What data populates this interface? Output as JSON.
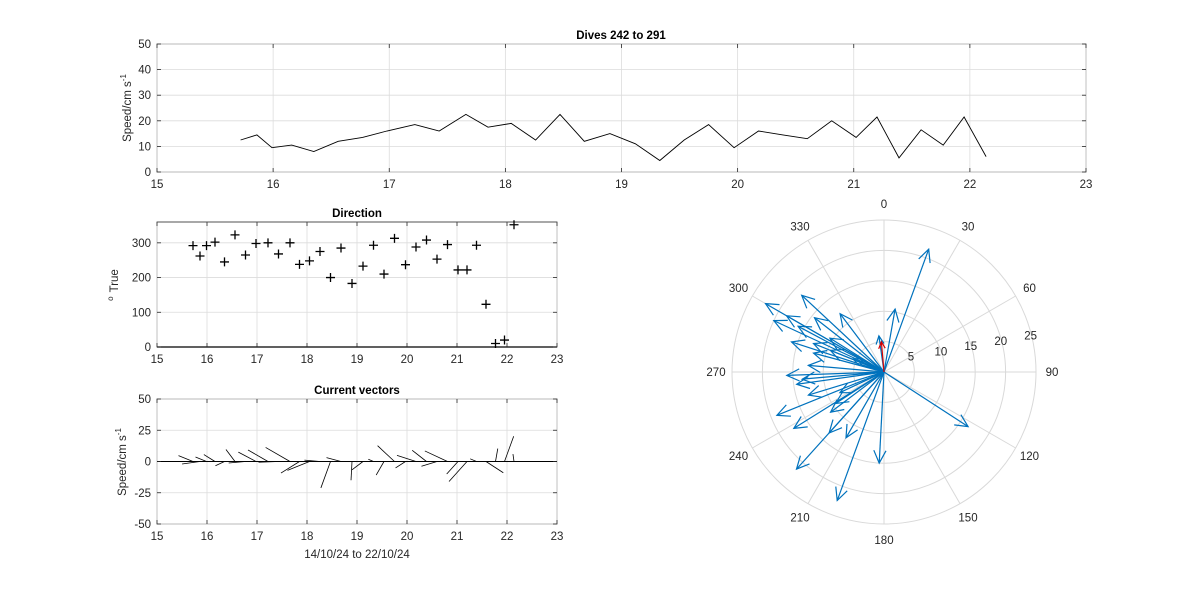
{
  "colors": {
    "line": "#000000",
    "arrow": "#0072bd",
    "mean_arrow": "#d40000",
    "grid": "#dcdcdc"
  },
  "chart_data": [
    {
      "type": "line",
      "title": "Dives 242 to 291",
      "xlabel": "",
      "ylabel": "Speed/cm s",
      "ylabel_sup": "-1",
      "xlim": [
        15,
        23
      ],
      "ylim": [
        0,
        50
      ],
      "xticks": [
        15,
        16,
        17,
        18,
        19,
        20,
        21,
        22,
        23
      ],
      "yticks": [
        0,
        10,
        20,
        30,
        40,
        50
      ],
      "grid": true,
      "x": [
        15.72,
        15.86,
        15.99,
        16.16,
        16.35,
        16.56,
        16.77,
        16.98,
        17.22,
        17.43,
        17.66,
        17.85,
        18.05,
        18.26,
        18.47,
        18.68,
        18.9,
        19.12,
        19.33,
        19.54,
        19.75,
        19.97,
        20.18,
        20.39,
        20.6,
        20.81,
        21.02,
        21.2,
        21.39,
        21.58,
        21.77,
        21.95,
        22.14
      ],
      "y": [
        12.5,
        14.5,
        9.5,
        10.5,
        8,
        12,
        13.5,
        16,
        18.5,
        16,
        22.5,
        17.5,
        19,
        12.5,
        22.5,
        12,
        15,
        11,
        4.5,
        12.5,
        18.5,
        9.5,
        16,
        14.5,
        13,
        20,
        13.5,
        21.5,
        5.5,
        16.5,
        10.5,
        21.5,
        6
      ]
    },
    {
      "type": "scatter",
      "title": "Direction",
      "xlabel": "",
      "ylabel": "True",
      "ylabel_sup": "o",
      "xlim": [
        15,
        23
      ],
      "ylim": [
        0,
        360
      ],
      "xticks": [
        15,
        16,
        17,
        18,
        19,
        20,
        21,
        22,
        23
      ],
      "yticks": [
        0,
        100,
        200,
        300
      ],
      "grid": true,
      "marker": "+",
      "x": [
        15.72,
        15.86,
        15.99,
        16.16,
        16.35,
        16.56,
        16.77,
        16.98,
        17.22,
        17.43,
        17.66,
        17.85,
        18.05,
        18.26,
        18.47,
        18.68,
        18.9,
        19.12,
        19.33,
        19.54,
        19.75,
        19.97,
        20.18,
        20.39,
        20.6,
        20.81,
        21.02,
        21.2,
        21.39,
        21.58,
        21.77,
        21.95,
        22.14
      ],
      "y": [
        292,
        262,
        292,
        302,
        245,
        323,
        265,
        298,
        300,
        268,
        300,
        238,
        248,
        275,
        200,
        285,
        183,
        233,
        293,
        210,
        313,
        237,
        288,
        308,
        253,
        295,
        222,
        222,
        293,
        123,
        10,
        20,
        352
      ]
    },
    {
      "type": "line",
      "subtype": "stick",
      "title": "Current vectors",
      "xlabel": "14/10/24 to 22/10/24",
      "ylabel": "Speed/cm s",
      "ylabel_sup": "-1",
      "xlim": [
        15,
        23
      ],
      "ylim": [
        -50,
        50
      ],
      "xticks": [
        15,
        16,
        17,
        18,
        19,
        20,
        21,
        22,
        23
      ],
      "yticks": [
        -50,
        -25,
        0,
        25,
        50
      ],
      "grid": true,
      "x": [
        15.72,
        15.86,
        15.99,
        16.16,
        16.35,
        16.56,
        16.77,
        16.98,
        17.22,
        17.43,
        17.66,
        17.85,
        18.05,
        18.26,
        18.47,
        18.68,
        18.9,
        19.12,
        19.33,
        19.54,
        19.75,
        19.97,
        20.18,
        20.39,
        20.6,
        20.81,
        21.02,
        21.2,
        21.39,
        21.58,
        21.77,
        21.95,
        22.14
      ],
      "speed": [
        12.5,
        14.5,
        9.5,
        10.5,
        8,
        12,
        13.5,
        16,
        18.5,
        16,
        22.5,
        17.5,
        19,
        12.5,
        22.5,
        12,
        15,
        11,
        4.5,
        12.5,
        18.5,
        9.5,
        16,
        14.5,
        13,
        20,
        13.5,
        21.5,
        5.5,
        16.5,
        10.5,
        21.5,
        6
      ],
      "direction_deg": [
        292,
        262,
        292,
        302,
        245,
        323,
        265,
        298,
        300,
        268,
        300,
        238,
        248,
        275,
        200,
        285,
        183,
        233,
        293,
        210,
        313,
        237,
        288,
        308,
        253,
        295,
        222,
        222,
        293,
        123,
        10,
        20,
        352
      ]
    },
    {
      "type": "scatter",
      "subtype": "polar-compass",
      "title": "",
      "angle_labels": [
        "0",
        "30",
        "60",
        "90",
        "120",
        "150",
        "180",
        "210",
        "240",
        "270",
        "300",
        "330"
      ],
      "radial_ticks": [
        5,
        10,
        15,
        20,
        25
      ],
      "rlim": [
        0,
        25
      ],
      "speed": [
        12.5,
        14.5,
        9.5,
        10.5,
        8,
        12,
        13.5,
        16,
        18.5,
        16,
        22.5,
        17.5,
        19,
        12.5,
        22.5,
        12,
        15,
        11,
        4.5,
        12.5,
        18.5,
        9.5,
        16,
        14.5,
        13,
        20,
        13.5,
        21.5,
        5.5,
        16.5,
        10.5,
        21.5,
        6
      ],
      "direction_deg": [
        292,
        262,
        292,
        302,
        245,
        323,
        265,
        298,
        300,
        268,
        300,
        238,
        248,
        275,
        200,
        285,
        183,
        233,
        293,
        210,
        313,
        237,
        288,
        308,
        253,
        295,
        222,
        222,
        293,
        123,
        10,
        20,
        352
      ],
      "mean_vector": {
        "speed": 5,
        "direction_deg": 355
      }
    }
  ]
}
